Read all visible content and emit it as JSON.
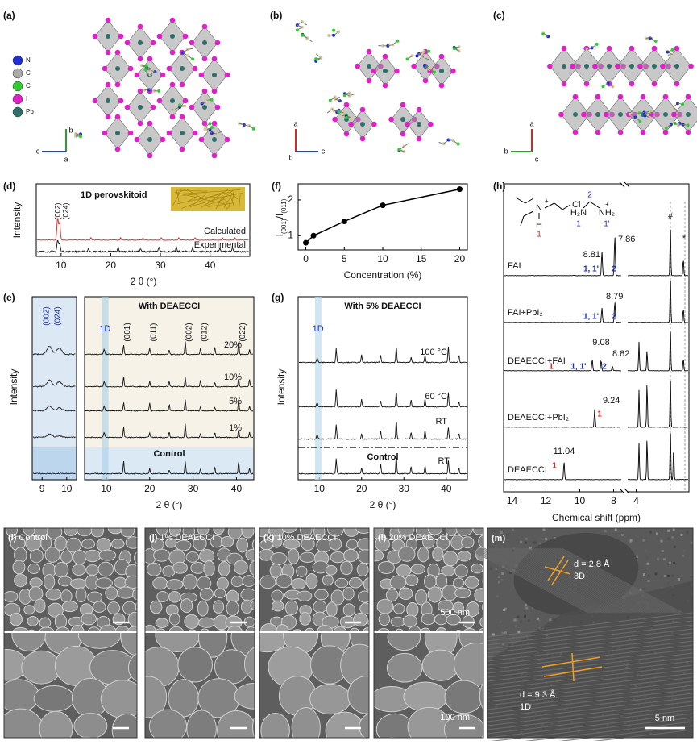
{
  "panels": {
    "a": {
      "label": "(a)",
      "legend": [
        "N",
        "C",
        "Cl",
        "I",
        "Pb"
      ],
      "axes": [
        "b",
        "c",
        "a"
      ]
    },
    "b": {
      "label": "(b)",
      "axes": [
        "a",
        "b",
        "c"
      ]
    },
    "c": {
      "label": "(c)",
      "axes": [
        "a",
        "b",
        "c"
      ]
    },
    "d": {
      "label": "(d)",
      "title": "1D perovskitoid",
      "peaks": [
        "(002)",
        "(024)"
      ],
      "traces": [
        "Calculated",
        "Experimental"
      ],
      "ylabel": "Intensity",
      "xlabel": "2 θ (°)",
      "xlim": [
        5,
        48
      ],
      "xticks": [
        10,
        20,
        30,
        40
      ]
    },
    "e": {
      "label": "(e)",
      "inset": {
        "peaks": [
          "(002)",
          "(024)"
        ],
        "xlim": [
          8.6,
          10.4
        ],
        "xticks": [
          9,
          10
        ]
      },
      "title": "With DEAECCI",
      "band": "1D",
      "peaks": [
        "(001)",
        "(011)",
        "(002)",
        "(012)",
        "(022)"
      ],
      "traces": [
        "20%",
        "10%",
        "5%",
        "1%"
      ],
      "control": "Control",
      "ylabel": "Intensity",
      "xlabel": "2 θ (°)",
      "xlim": [
        5,
        44
      ],
      "xticks": [
        10,
        20,
        30,
        40
      ]
    },
    "f": {
      "label": "(f)",
      "ylabel": [
        "I",
        "(001)",
        "/I",
        "(011)"
      ],
      "xlabel": "Concentration (%)",
      "x": [
        0,
        1,
        5,
        10,
        20
      ],
      "values": [
        0.8,
        1.0,
        1.4,
        1.85,
        2.3
      ],
      "xlim": [
        -1,
        21
      ],
      "ylim": [
        0.6,
        2.45
      ],
      "xticks": [
        0,
        5,
        10,
        15,
        20
      ],
      "yticks": [
        1,
        2
      ]
    },
    "g": {
      "label": "(g)",
      "title": "With 5% DEAECCI",
      "band": "1D",
      "traces": [
        "100 °C",
        "60 °C",
        "RT"
      ],
      "control": "Control",
      "control_trace": "RT",
      "ylabel": "Intensity",
      "xlabel": "2 θ (°)",
      "xlim": [
        5,
        45
      ],
      "xticks": [
        10,
        20,
        30,
        40
      ]
    },
    "h": {
      "label": "(h)",
      "molecule1": {
        "n": "N",
        "charge": "+",
        "h": "H",
        "cl": "Cl",
        "index": "1"
      },
      "molecule2": {
        "left": "H₂N",
        "right": "NH₂",
        "charge": "+",
        "index_c": "2",
        "index_n": "1",
        "index_n2": "1'"
      },
      "samples": [
        "FAI",
        "FAI+PbI₂",
        "DEAECCI+FAI",
        "DEAECCI+PbI₂",
        "DEAECCI"
      ],
      "shifts": {
        "fai": [
          "8.81",
          "7.86"
        ],
        "fai_pbi2": [
          "8.79"
        ],
        "deaecci_fai": [
          "9.08",
          "8.82"
        ],
        "deaecci_pbi2": [
          "9.24"
        ],
        "deaecci": [
          "11.04"
        ]
      },
      "assignments": {
        "n_h": "1, 1'",
        "c_h": "2",
        "nh": "1"
      },
      "markers": [
        "#",
        "*"
      ],
      "xlabel": "Chemical shift (ppm)",
      "segments": [
        {
          "xlim": [
            14.5,
            7.5
          ],
          "xticks": [
            14,
            12,
            10,
            8
          ]
        },
        {
          "xlim": [
            4.3,
            2.3
          ],
          "xticks": [
            4
          ]
        }
      ]
    }
  },
  "sem": [
    {
      "label": "(i)",
      "text": "Control"
    },
    {
      "label": "(j)",
      "text": "1% DEAECCI"
    },
    {
      "label": "(k)",
      "text": "10% DEAECCI"
    },
    {
      "label": "(l)",
      "text": "20% DEAECCI"
    }
  ],
  "scale_bars": [
    "500 nm",
    "100 nm"
  ],
  "tem": {
    "label": "(m)",
    "d3": "d = 2.8 Å",
    "phase3": "3D",
    "d1": "d = 9.3 Å",
    "phase1": "1D",
    "scale": "5 nm"
  }
}
